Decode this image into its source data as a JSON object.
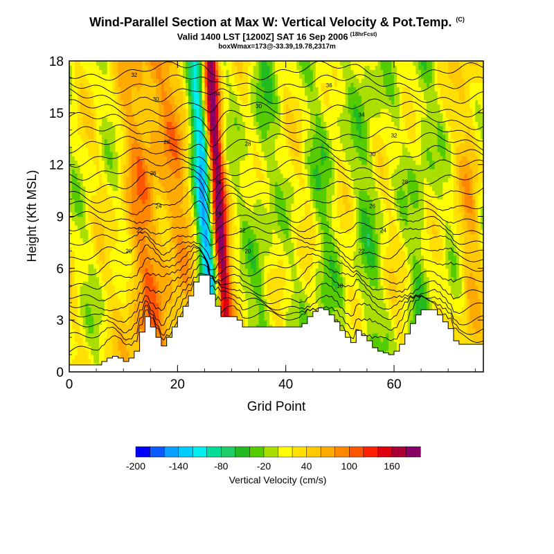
{
  "header": {
    "title": "Wind-Parallel Section at Max W: Vertical Velocity & Pot.Temp.",
    "title_tag": "(C)",
    "valid": "Valid 1400 LST [1200Z] SAT 16 Sep 2006",
    "valid_tag": "(18hrFcst)",
    "info": "boxWmax=173@-33.39,19.78,2317m"
  },
  "chart_data": {
    "type": "heatmap",
    "title": "Wind-Parallel Section at Max W: Vertical Velocity & Pot.Temp.",
    "xlabel": "Grid Point",
    "ylabel": "Height (Kft MSL)",
    "xlim": [
      0,
      76.5
    ],
    "ylim": [
      0,
      18
    ],
    "xticks": [
      "0",
      "20",
      "40",
      "60"
    ],
    "yticks": [
      "0",
      "3",
      "6",
      "9",
      "12",
      "15",
      "18"
    ],
    "colorbar": {
      "label": "Vertical Velocity (cm/s)",
      "bins": [
        -200,
        -180,
        -160,
        -140,
        -120,
        -100,
        -80,
        -60,
        -40,
        -20,
        0,
        20,
        40,
        60,
        80,
        100,
        120,
        140,
        160,
        180
      ],
      "tick_labels": [
        "-200",
        "-140",
        "-80",
        "-20",
        "40",
        "100",
        "160"
      ],
      "colors": [
        "#0000ff",
        "#0a5cff",
        "#0aa0ff",
        "#00ccff",
        "#00eeee",
        "#00dd99",
        "#22cc66",
        "#22bb22",
        "#55cc00",
        "#aadd00",
        "#ffff00",
        "#ffe000",
        "#ffc800",
        "#ffaa00",
        "#ff8800",
        "#ff5500",
        "#ff2200",
        "#dd0011",
        "#aa0033",
        "#880066"
      ]
    },
    "vertical_velocity_features": [
      {
        "x_center": 25,
        "x_width": 1.6,
        "value": -150
      },
      {
        "x_center": 27.6,
        "x_width": 1.4,
        "value": 170
      },
      {
        "x_center": 13.5,
        "x_width": 3.5,
        "value": 60
      },
      {
        "x_center": 19.5,
        "x_width": 4,
        "value": 50
      },
      {
        "x_center": 35.5,
        "x_width": 2.5,
        "value": -30
      },
      {
        "x_center": 47,
        "x_width": 3,
        "value": -25
      },
      {
        "x_center": 55,
        "x_width": 2.5,
        "value": -30
      },
      {
        "x_center": 65,
        "x_width": 2,
        "value": -30
      },
      {
        "x_center": 74,
        "x_width": 2,
        "value": 40
      }
    ],
    "terrain_kft": [
      [
        0,
        0.4
      ],
      [
        5,
        0.4
      ],
      [
        6,
        0.6
      ],
      [
        7,
        0.8
      ],
      [
        8,
        0.9
      ],
      [
        9,
        0.8
      ],
      [
        10,
        0.6
      ],
      [
        11,
        0.8
      ],
      [
        12,
        1.2
      ],
      [
        13,
        2.3
      ],
      [
        14,
        3.2
      ],
      [
        15,
        2.6
      ],
      [
        16,
        2.0
      ],
      [
        17,
        1.5
      ],
      [
        18,
        2.0
      ],
      [
        19,
        2.6
      ],
      [
        20,
        3.2
      ],
      [
        21,
        3.8
      ],
      [
        22,
        4.4
      ],
      [
        23,
        5.2
      ],
      [
        24,
        5.6
      ],
      [
        25,
        5.6
      ],
      [
        26,
        4.5
      ],
      [
        27,
        3.8
      ],
      [
        28,
        3.2
      ],
      [
        30,
        3.2
      ],
      [
        31,
        3.0
      ],
      [
        32,
        2.6
      ],
      [
        38,
        2.6
      ],
      [
        42,
        2.6
      ],
      [
        43,
        2.8
      ],
      [
        44,
        3.2
      ],
      [
        45,
        3.5
      ],
      [
        46,
        3.7
      ],
      [
        47,
        3.6
      ],
      [
        48,
        3.3
      ],
      [
        49,
        2.9
      ],
      [
        50,
        2.4
      ],
      [
        51,
        2.0
      ],
      [
        52,
        1.7
      ],
      [
        53,
        2.4
      ],
      [
        54,
        2.1
      ],
      [
        55,
        1.8
      ],
      [
        56,
        1.4
      ],
      [
        57,
        1.2
      ],
      [
        58,
        1.1
      ],
      [
        59,
        1.0
      ],
      [
        60,
        1.2
      ],
      [
        61,
        1.6
      ],
      [
        62,
        2.2
      ],
      [
        63,
        2.8
      ],
      [
        64,
        3.3
      ],
      [
        65,
        3.6
      ],
      [
        67,
        3.6
      ],
      [
        68,
        3.3
      ],
      [
        69,
        2.9
      ],
      [
        70,
        2.5
      ],
      [
        71,
        1.8
      ],
      [
        72,
        1.6
      ],
      [
        76.5,
        1.6
      ]
    ],
    "theta_contours": [
      {
        "label": "20",
        "base_height_kft": 7.0
      },
      {
        "label": "22",
        "base_height_kft": 8.2
      },
      {
        "label": "24",
        "base_height_kft": 9.6
      },
      {
        "label": "26",
        "base_height_kft": 11.0
      },
      {
        "label": "28",
        "base_height_kft": 12.6
      },
      {
        "label": "30",
        "base_height_kft": 14.2
      },
      {
        "label": "32",
        "base_height_kft": 15.8
      },
      {
        "label": "34",
        "base_height_kft": 17.2
      }
    ]
  }
}
